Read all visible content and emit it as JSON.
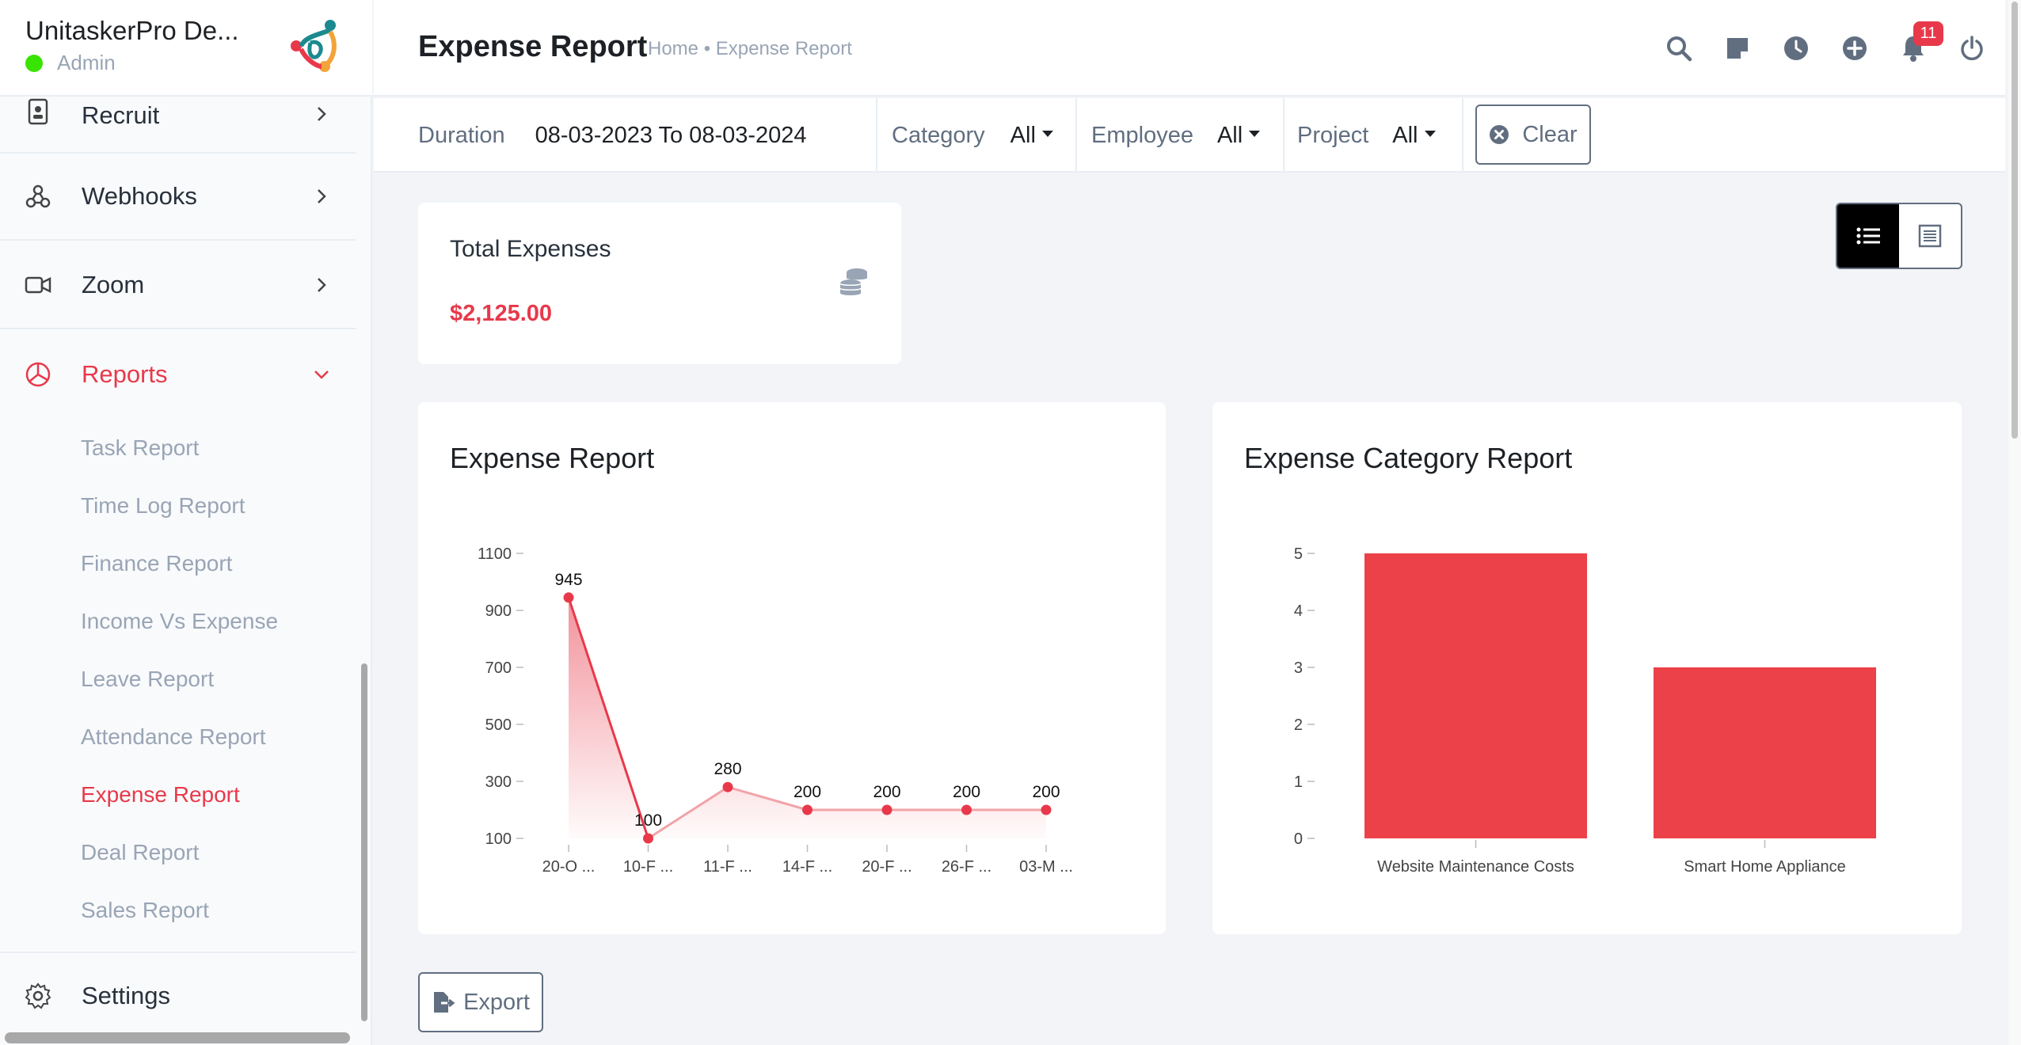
{
  "brand": {
    "name": "UnitaskerPro De...",
    "role": "Admin"
  },
  "sidebar": {
    "items": [
      {
        "label": "Recruit",
        "icon": "badge-id-icon"
      },
      {
        "label": "Webhooks",
        "icon": "webhook-icon"
      },
      {
        "label": "Zoom",
        "icon": "video-camera-icon"
      },
      {
        "label": "Reports",
        "icon": "pie-chart-icon",
        "active": true
      },
      {
        "label": "Settings",
        "icon": "gear-icon"
      }
    ],
    "report_links": [
      {
        "label": "Task Report"
      },
      {
        "label": "Time Log Report"
      },
      {
        "label": "Finance Report"
      },
      {
        "label": "Income Vs Expense"
      },
      {
        "label": "Leave Report"
      },
      {
        "label": "Attendance Report"
      },
      {
        "label": "Expense Report",
        "active": true
      },
      {
        "label": "Deal Report"
      },
      {
        "label": "Sales Report"
      }
    ]
  },
  "header": {
    "title": "Expense Report",
    "breadcrumb": "Home • Expense Report",
    "notification_count": "11"
  },
  "filters": {
    "duration_label": "Duration",
    "duration_value": "08-03-2023 To 08-03-2024",
    "category_label": "Category",
    "category_value": "All",
    "employee_label": "Employee",
    "employee_value": "All",
    "project_label": "Project",
    "project_value": "All",
    "clear_label": "Clear"
  },
  "summary": {
    "total_title": "Total Expenses",
    "total_value": "$2,125.00"
  },
  "export_label": "Export",
  "colors": {
    "accent": "#e8394a",
    "bar": "#ec4148"
  },
  "chart_data": [
    {
      "type": "line",
      "title": "Expense Report",
      "categories": [
        "20-O ...",
        "10-F ...",
        "11-F ...",
        "14-F ...",
        "20-F ...",
        "26-F ...",
        "03-M ..."
      ],
      "values": [
        945,
        100,
        280,
        200,
        200,
        200,
        200
      ],
      "yticks": [
        100,
        300,
        500,
        700,
        900,
        1100
      ],
      "ylim": [
        100,
        1100
      ],
      "grid": false,
      "data_labels": true
    },
    {
      "type": "bar",
      "title": "Expense Category Report",
      "categories": [
        "Website Maintenance Costs",
        "Smart Home Appliance"
      ],
      "values": [
        5,
        3
      ],
      "yticks": [
        0,
        1,
        2,
        3,
        4,
        5
      ],
      "ylim": [
        0,
        5
      ],
      "grid": false
    }
  ]
}
